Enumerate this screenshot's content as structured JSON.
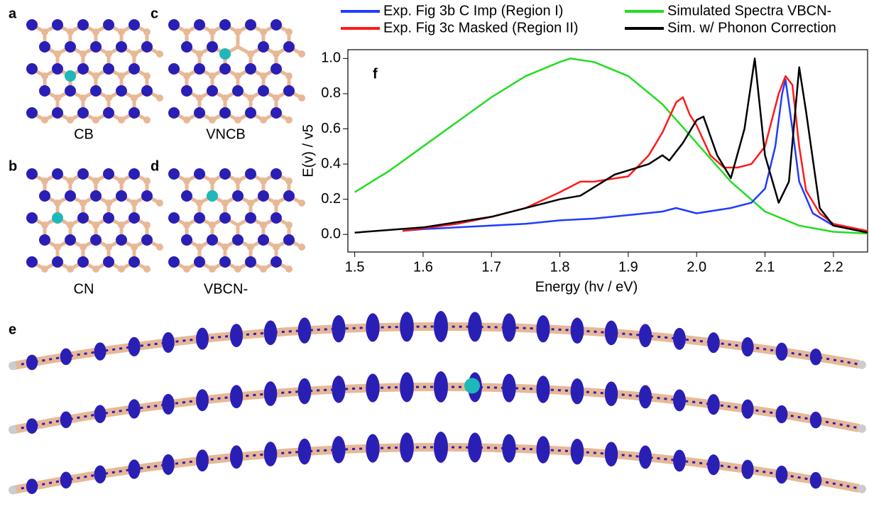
{
  "chart_data": {
    "type": "line",
    "annotation": "f",
    "xlabel": "Energy (hv / eV)",
    "ylabel": "E(v) / v5",
    "xlim": [
      1.49,
      2.25
    ],
    "ylim": [
      -0.1,
      1.05
    ],
    "xticks": [
      1.5,
      1.6,
      1.7,
      1.8,
      1.9,
      {
        "value": 2.0,
        "label": "2.0"
      },
      2.1,
      2.2
    ],
    "yticks": [
      {
        "value": 0,
        "label": "0.0"
      },
      0.2,
      0.4,
      0.6,
      0.8,
      {
        "value": 1,
        "label": "1.0"
      }
    ],
    "series": [
      {
        "name": "Exp. Fig 3b C Imp (Region I)",
        "color": "#1f3cff",
        "x": [
          1.57,
          1.6,
          1.65,
          1.7,
          1.75,
          1.8,
          1.85,
          1.9,
          1.95,
          1.97,
          2.0,
          2.05,
          2.08,
          2.1,
          2.115,
          2.125,
          2.13,
          2.14,
          2.15,
          2.17,
          2.2,
          2.25
        ],
        "values": [
          0.02,
          0.03,
          0.04,
          0.05,
          0.06,
          0.08,
          0.09,
          0.11,
          0.13,
          0.15,
          0.12,
          0.15,
          0.18,
          0.26,
          0.5,
          0.8,
          0.88,
          0.6,
          0.3,
          0.12,
          0.05,
          0.02
        ]
      },
      {
        "name": "Exp. Fig 3c Masked (Region II)",
        "color": "#ff1a1a",
        "x": [
          1.57,
          1.65,
          1.7,
          1.75,
          1.8,
          1.83,
          1.85,
          1.9,
          1.93,
          1.95,
          1.97,
          1.98,
          1.99,
          2.0,
          2.02,
          2.04,
          2.06,
          2.08,
          2.1,
          2.12,
          2.13,
          2.14,
          2.15,
          2.16,
          2.18,
          2.2,
          2.25
        ],
        "values": [
          0.02,
          0.06,
          0.1,
          0.15,
          0.24,
          0.3,
          0.3,
          0.33,
          0.45,
          0.58,
          0.75,
          0.78,
          0.68,
          0.62,
          0.45,
          0.38,
          0.38,
          0.4,
          0.5,
          0.8,
          0.9,
          0.85,
          0.5,
          0.25,
          0.12,
          0.06,
          0.02
        ]
      },
      {
        "name": "Simulated Spectra VBCN-",
        "color": "#22dd22",
        "x": [
          1.5,
          1.55,
          1.6,
          1.65,
          1.7,
          1.75,
          1.8,
          1.815,
          1.85,
          1.9,
          1.95,
          2.0,
          2.05,
          2.1,
          2.15,
          2.2,
          2.25
        ],
        "values": [
          0.24,
          0.36,
          0.5,
          0.64,
          0.78,
          0.9,
          0.98,
          1.0,
          0.98,
          0.9,
          0.74,
          0.52,
          0.3,
          0.13,
          0.05,
          0.015,
          0.005
        ]
      },
      {
        "name": "Sim. w/ Phonon Correction",
        "color": "#000000",
        "x": [
          1.5,
          1.6,
          1.7,
          1.8,
          1.83,
          1.88,
          1.93,
          1.95,
          1.96,
          1.98,
          2.0,
          2.01,
          2.03,
          2.05,
          2.07,
          2.085,
          2.1,
          2.12,
          2.135,
          2.15,
          2.16,
          2.18,
          2.2,
          2.25
        ],
        "values": [
          0.01,
          0.04,
          0.1,
          0.2,
          0.22,
          0.34,
          0.4,
          0.45,
          0.42,
          0.52,
          0.65,
          0.67,
          0.45,
          0.32,
          0.6,
          1.0,
          0.45,
          0.18,
          0.3,
          0.95,
          0.7,
          0.15,
          0.05,
          0.01
        ]
      }
    ]
  },
  "panels": [
    {
      "letter": "a",
      "caption": "CB"
    },
    {
      "letter": "b",
      "caption": "CN"
    },
    {
      "letter": "c",
      "caption": "VNCB"
    },
    {
      "letter": "d",
      "caption": "VBCN-"
    },
    {
      "letter": "e"
    }
  ]
}
